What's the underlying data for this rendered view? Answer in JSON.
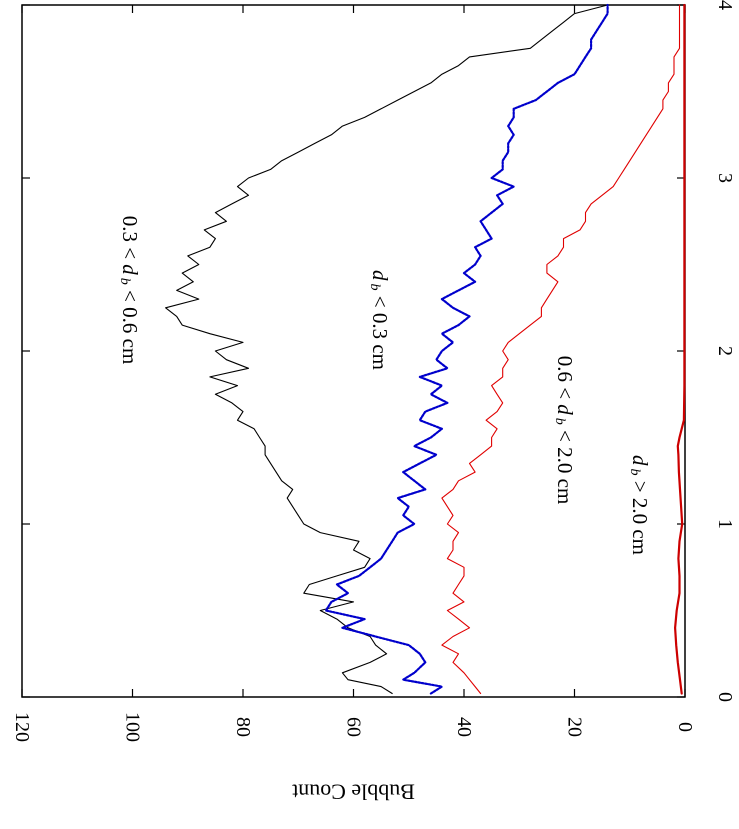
{
  "chart_data": {
    "type": "line",
    "orientation": "rotated-90-clockwise",
    "title": "",
    "xlabel": "",
    "ylabel": "Bubble Count",
    "xlim": [
      0,
      4
    ],
    "ylim": [
      0,
      120
    ],
    "x_ticks": [
      "0",
      "1",
      "2",
      "3",
      "4"
    ],
    "y_ticks": [
      "0",
      "20",
      "40",
      "60",
      "80",
      "100",
      "120"
    ],
    "grid": false,
    "legend": "none (series labeled inline)",
    "series": [
      {
        "name": "0.3 < d_b < 0.6 cm",
        "label": {
          "a": "0.3 < ",
          "d": "d",
          "b": "b",
          "c": " < 0.6 cm"
        },
        "color": "#000000",
        "style": "solid",
        "x": [
          0.02,
          0.06,
          0.1,
          0.14,
          0.2,
          0.25,
          0.3,
          0.35,
          0.4,
          0.45,
          0.5,
          0.55,
          0.6,
          0.65,
          0.7,
          0.75,
          0.8,
          0.85,
          0.9,
          0.95,
          1.0,
          1.05,
          1.1,
          1.15,
          1.2,
          1.25,
          1.3,
          1.35,
          1.4,
          1.45,
          1.5,
          1.55,
          1.6,
          1.65,
          1.7,
          1.75,
          1.8,
          1.85,
          1.9,
          1.95,
          2.0,
          2.05,
          2.1,
          2.15,
          2.2,
          2.25,
          2.3,
          2.35,
          2.4,
          2.45,
          2.5,
          2.55,
          2.6,
          2.65,
          2.7,
          2.75,
          2.8,
          2.85,
          2.9,
          2.95,
          3.0,
          3.05,
          3.1,
          3.15,
          3.2,
          3.25,
          3.3,
          3.35,
          3.4,
          3.45,
          3.5,
          3.55,
          3.6,
          3.65,
          3.7,
          3.75,
          3.8,
          3.85,
          3.9,
          3.95,
          4.0
        ],
        "y": [
          53,
          55,
          61,
          62,
          57,
          54,
          56,
          57,
          61,
          63,
          66,
          60,
          69,
          68,
          63,
          58,
          57,
          60,
          59,
          66,
          69,
          70,
          71,
          72,
          71,
          73,
          74,
          75,
          76,
          76,
          77,
          78,
          81,
          80,
          82,
          85,
          81,
          86,
          79,
          83,
          85,
          80,
          86,
          91,
          92,
          94,
          88,
          92,
          89,
          91,
          88,
          90,
          86,
          85,
          87,
          83,
          85,
          82,
          79,
          81,
          79,
          75,
          73,
          70,
          67,
          64,
          62,
          58,
          55,
          52,
          49,
          46,
          44,
          41,
          39,
          28,
          26,
          24,
          22,
          20,
          14
        ]
      },
      {
        "name": "d_b < 0.3 cm",
        "label": {
          "a": "",
          "d": "d",
          "b": "b",
          "c": " < 0.3 cm"
        },
        "color": "#0000cc",
        "style": "dotted",
        "x": [
          0.02,
          0.06,
          0.1,
          0.14,
          0.2,
          0.25,
          0.3,
          0.35,
          0.4,
          0.45,
          0.5,
          0.55,
          0.6,
          0.65,
          0.7,
          0.75,
          0.8,
          0.85,
          0.9,
          0.95,
          1.0,
          1.05,
          1.1,
          1.15,
          1.2,
          1.25,
          1.3,
          1.35,
          1.4,
          1.45,
          1.5,
          1.55,
          1.6,
          1.65,
          1.7,
          1.75,
          1.8,
          1.85,
          1.9,
          1.95,
          2.0,
          2.05,
          2.1,
          2.15,
          2.2,
          2.25,
          2.3,
          2.35,
          2.4,
          2.45,
          2.5,
          2.55,
          2.6,
          2.65,
          2.7,
          2.75,
          2.8,
          2.85,
          2.9,
          2.95,
          3.0,
          3.05,
          3.1,
          3.15,
          3.2,
          3.25,
          3.3,
          3.35,
          3.4,
          3.45,
          3.5,
          3.55,
          3.6,
          3.65,
          3.7,
          3.75,
          3.8,
          3.85,
          3.9,
          3.95,
          4.0
        ],
        "y": [
          46,
          44,
          51,
          49,
          47,
          48,
          50,
          56,
          62,
          58,
          65,
          64,
          61,
          63,
          59,
          57,
          55,
          54,
          53,
          52,
          49,
          51,
          50,
          52,
          47,
          49,
          51,
          48,
          45,
          49,
          46,
          44,
          48,
          47,
          43,
          46,
          44,
          48,
          43,
          45,
          44,
          42,
          44,
          41,
          39,
          42,
          44,
          41,
          38,
          40,
          38,
          37,
          38,
          35,
          36,
          37,
          35,
          33,
          34,
          31,
          35,
          33,
          33,
          32,
          32,
          31,
          32,
          31,
          31,
          27,
          25,
          23,
          20,
          19,
          18,
          17,
          17,
          16,
          15,
          14,
          14
        ]
      },
      {
        "name": "0.6 < d_b < 2.0 cm",
        "label": {
          "a": "0.6 < ",
          "d": "d",
          "b": "b",
          "c": " < 2.0 cm"
        },
        "color": "#e00000",
        "style": "solid",
        "x": [
          0.02,
          0.06,
          0.1,
          0.14,
          0.2,
          0.25,
          0.3,
          0.35,
          0.4,
          0.45,
          0.5,
          0.55,
          0.6,
          0.65,
          0.7,
          0.75,
          0.8,
          0.85,
          0.9,
          0.95,
          1.0,
          1.05,
          1.1,
          1.15,
          1.2,
          1.25,
          1.3,
          1.35,
          1.4,
          1.45,
          1.5,
          1.55,
          1.6,
          1.65,
          1.7,
          1.75,
          1.8,
          1.85,
          1.9,
          1.95,
          2.0,
          2.05,
          2.1,
          2.15,
          2.2,
          2.25,
          2.3,
          2.35,
          2.4,
          2.45,
          2.5,
          2.55,
          2.6,
          2.65,
          2.7,
          2.75,
          2.8,
          2.85,
          2.9,
          2.95,
          3.0,
          3.05,
          3.1,
          3.15,
          3.2,
          3.25,
          3.3,
          3.35,
          3.4,
          3.45,
          3.5,
          3.55,
          3.6,
          3.65,
          3.7,
          3.75,
          3.8,
          3.85,
          3.9,
          3.95,
          4.0
        ],
        "y": [
          37,
          38,
          39,
          40,
          42,
          41,
          44,
          42,
          39,
          41,
          43,
          40,
          42,
          41,
          40,
          40,
          43,
          42,
          42,
          41,
          43,
          42,
          43,
          44,
          42,
          41,
          38,
          39,
          37,
          35,
          35,
          34,
          36,
          34,
          33,
          34,
          35,
          33,
          33,
          32,
          33,
          32,
          30,
          28,
          26,
          26,
          25,
          24,
          23,
          25,
          25,
          23,
          22,
          22,
          19,
          18,
          18,
          17,
          15,
          13,
          12,
          11,
          10,
          9,
          8,
          7,
          6,
          5,
          4,
          4,
          3,
          3,
          2,
          2,
          2,
          1,
          1,
          1,
          1,
          1,
          1
        ]
      },
      {
        "name": "d_b > 2.0 cm",
        "label": {
          "a": "",
          "d": "d",
          "b": "b",
          "c": " > 2.0 cm"
        },
        "color": "#cc0000",
        "style": "solid-thick",
        "x": [
          0.02,
          0.1,
          0.2,
          0.3,
          0.4,
          0.5,
          0.6,
          0.7,
          0.8,
          0.9,
          1.0,
          1.1,
          1.2,
          1.3,
          1.4,
          1.45,
          1.5,
          1.55,
          1.6,
          1.8,
          2.0,
          2.5,
          3.0,
          3.5,
          4.0
        ],
        "y": [
          0.6,
          0.9,
          1.3,
          1.6,
          1.8,
          1.5,
          1.0,
          1.0,
          1.2,
          1.0,
          0.5,
          0.7,
          0.9,
          1.1,
          1.2,
          1.3,
          1.0,
          0.6,
          0.2,
          0.1,
          0.1,
          0.1,
          0.1,
          0.1,
          0.1
        ]
      }
    ]
  }
}
